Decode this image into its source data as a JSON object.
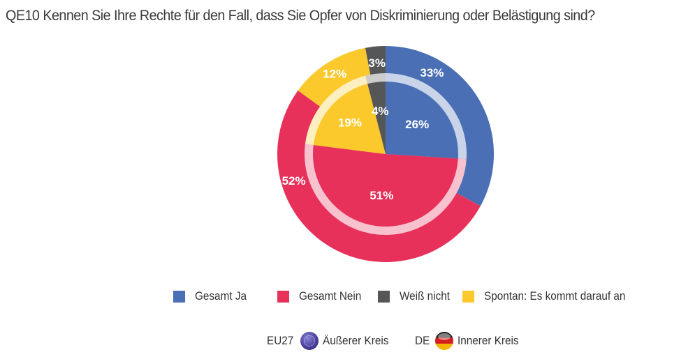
{
  "chart_data": {
    "type": "pie",
    "title": "QE10 Kennen Sie Ihre Rechte für den Fall, dass Sie Opfer von Diskriminierung oder Belästigung sind?",
    "categories": [
      "Gesamt Ja",
      "Gesamt Nein",
      "Weiß nicht",
      "Spontan: Es kommt darauf an"
    ],
    "colors": [
      "#4a6fb5",
      "#e8315a",
      "#555658",
      "#fcc92d"
    ],
    "series": [
      {
        "name": "EU27",
        "ring": "Äußerer Kreis",
        "values": [
          33,
          52,
          3,
          12
        ],
        "labels": [
          "33%",
          "52%",
          "3%",
          "12%"
        ]
      },
      {
        "name": "DE",
        "ring": "Innerer Kreis",
        "values": [
          26,
          51,
          4,
          19
        ],
        "labels": [
          "26%",
          "51%",
          "4%",
          "19%"
        ]
      }
    ],
    "slice_order": [
      "Gesamt Ja",
      "Gesamt Nein",
      "Spontan: Es kommt darauf an",
      "Weiß nicht"
    ],
    "start": "12 o'clock, clockwise",
    "legend_position": "bottom"
  },
  "legend": {
    "items": [
      {
        "label": "Gesamt Ja",
        "color": "#4a6fb5"
      },
      {
        "label": "Gesamt Nein",
        "color": "#e8315a"
      },
      {
        "label": "Weiß nicht",
        "color": "#555658"
      },
      {
        "label": "Spontan: Es kommt darauf an",
        "color": "#fcc92d"
      }
    ],
    "rings": [
      {
        "code": "EU27",
        "flag": "eu-flag-icon",
        "label": "Äußerer Kreis"
      },
      {
        "code": "DE",
        "flag": "germany-flag-icon",
        "label": "Innerer Kreis"
      }
    ]
  }
}
